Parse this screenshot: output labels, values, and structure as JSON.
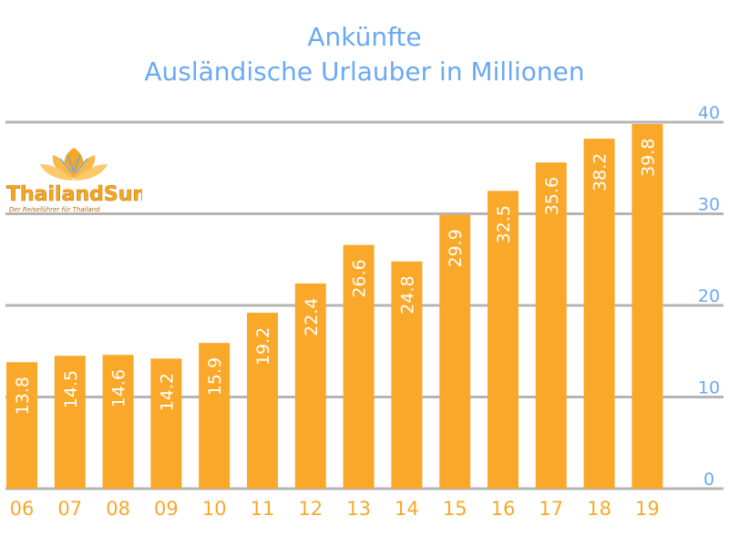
{
  "chart_data": {
    "type": "bar",
    "title": "Ankünfte",
    "subtitle": "Ausländische Urlauber in Millionen",
    "categories": [
      "06",
      "07",
      "08",
      "09",
      "10",
      "11",
      "12",
      "13",
      "14",
      "15",
      "16",
      "17",
      "18",
      "19"
    ],
    "values": [
      13.8,
      14.5,
      14.6,
      14.2,
      15.9,
      19.2,
      22.4,
      26.6,
      24.8,
      29.9,
      32.5,
      35.6,
      38.2,
      39.8
    ],
    "value_labels": [
      "13.8",
      "14.5",
      "14.6",
      "14.2",
      "15.9",
      "19.2",
      "22.4",
      "26.6",
      "24.8",
      "29.9",
      "32.5",
      "35.6",
      "38.2",
      "39.8"
    ],
    "y_ticks": [
      0,
      10,
      20,
      30,
      40
    ],
    "ylim": [
      0,
      40
    ],
    "y_axis_position": "right",
    "grid": true,
    "bar_color": "#f9a82a",
    "label_color": "#ffffff",
    "tick_color": "#6aa9f5",
    "category_color": "#f9a82a",
    "grid_color": "#b5b5b5"
  },
  "logo": {
    "name": "ThailandSun",
    "tagline": "Der Reiseführer für Thailand",
    "icon": "lotus-icon"
  }
}
